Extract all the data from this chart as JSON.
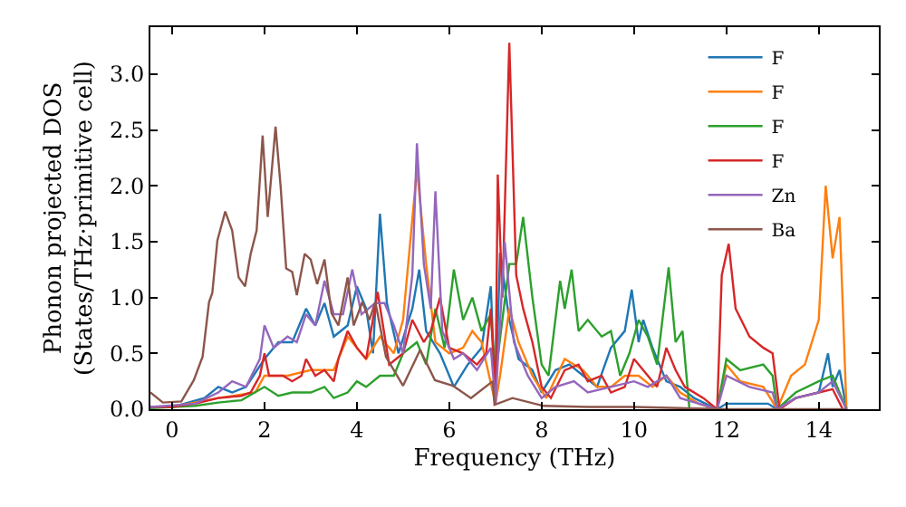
{
  "chart_data": {
    "type": "line",
    "xlabel": "Frequency (THz)",
    "ylabel": "Phonon projected DOS\n(States/THz·primitive cell)",
    "xlim": [
      -0.47,
      15.3
    ],
    "xticks": [
      0,
      2,
      4,
      6,
      8,
      10,
      12,
      14
    ],
    "ylim": [
      0,
      3.42
    ],
    "yticks": [
      {
        "value": 0,
        "label": "0.0"
      },
      {
        "value": 0.5,
        "label": "0.5"
      },
      {
        "value": 1,
        "label": "1.0"
      },
      {
        "value": 1.5,
        "label": "1.5"
      },
      {
        "value": 2,
        "label": "2.0"
      },
      {
        "value": 2.5,
        "label": "2.5"
      },
      {
        "value": 3,
        "label": "3.0"
      }
    ],
    "legend": "top right",
    "series": [
      {
        "name": "F",
        "color": "#1f77b4",
        "x": [
          -0.47,
          0,
          0.7,
          1.0,
          1.3,
          1.6,
          2.0,
          2.3,
          2.6,
          2.9,
          3.1,
          3.3,
          3.5,
          3.8,
          4.0,
          4.2,
          4.35,
          4.5,
          4.65,
          4.9,
          5.2,
          5.35,
          5.5,
          5.8,
          6.1,
          6.4,
          6.7,
          6.9,
          7.0,
          7.1,
          7.3,
          7.5,
          7.8,
          8.0,
          8.3,
          8.6,
          8.9,
          9.2,
          9.5,
          9.8,
          9.95,
          10.1,
          10.2,
          10.4,
          10.7,
          11.0,
          11.3,
          11.8,
          12.0,
          12.5,
          12.9,
          13.1,
          13.5,
          14.0,
          14.2,
          14.3,
          14.45,
          14.6
        ],
        "values": [
          0.02,
          0.02,
          0.1,
          0.2,
          0.15,
          0.2,
          0.45,
          0.6,
          0.6,
          0.9,
          0.75,
          0.95,
          0.65,
          0.75,
          1.1,
          0.9,
          0.5,
          1.75,
          0.95,
          0.5,
          0.9,
          1.25,
          0.7,
          0.5,
          0.2,
          0.4,
          0.55,
          1.1,
          0.05,
          1.4,
          0.8,
          0.45,
          0.35,
          0.15,
          0.35,
          0.4,
          0.3,
          0.2,
          0.55,
          0.7,
          1.07,
          0.6,
          0.8,
          0.55,
          0.25,
          0.2,
          0.1,
          0.0,
          0.05,
          0.05,
          0.05,
          0.0,
          0.1,
          0.15,
          0.5,
          0.2,
          0.35,
          0.0
        ]
      },
      {
        "name": "F",
        "color": "#ff7f0e",
        "x": [
          -0.47,
          0,
          1.0,
          1.8,
          2.0,
          2.5,
          3.0,
          3.5,
          3.8,
          4.2,
          4.5,
          4.8,
          5.0,
          5.3,
          5.5,
          5.7,
          6.0,
          6.3,
          6.5,
          6.7,
          7.0,
          7.1,
          7.3,
          7.5,
          7.8,
          8.1,
          8.5,
          8.9,
          9.2,
          9.5,
          9.8,
          10.1,
          10.4,
          10.7,
          11.0,
          11.4,
          11.8,
          12.0,
          12.3,
          12.8,
          13.1,
          13.4,
          13.7,
          14.0,
          14.15,
          14.3,
          14.45,
          14.6
        ],
        "values": [
          0.02,
          0.02,
          0.1,
          0.15,
          0.3,
          0.3,
          0.35,
          0.35,
          0.65,
          0.45,
          0.65,
          0.5,
          0.8,
          2.15,
          1.3,
          0.6,
          0.5,
          0.55,
          0.7,
          0.6,
          0.05,
          0.3,
          0.9,
          0.6,
          0.3,
          0.1,
          0.45,
          0.35,
          0.2,
          0.2,
          0.3,
          0.3,
          0.2,
          0.3,
          0.15,
          0.05,
          0.0,
          0.4,
          0.25,
          0.2,
          0.0,
          0.3,
          0.4,
          0.8,
          2.0,
          1.35,
          1.72,
          0.0
        ]
      },
      {
        "name": "F",
        "color": "#2ca02c",
        "x": [
          -0.47,
          0.5,
          1.0,
          1.5,
          2.0,
          2.3,
          2.6,
          3.0,
          3.3,
          3.5,
          3.8,
          4.0,
          4.2,
          4.5,
          4.8,
          5.0,
          5.3,
          5.5,
          5.7,
          5.9,
          6.1,
          6.3,
          6.5,
          6.7,
          6.9,
          7.0,
          7.3,
          7.45,
          7.6,
          7.8,
          8.0,
          8.15,
          8.4,
          8.5,
          8.65,
          8.8,
          9.0,
          9.3,
          9.5,
          9.7,
          9.9,
          10.1,
          10.3,
          10.5,
          10.75,
          10.9,
          11.05,
          11.2,
          11.8,
          12.0,
          12.3,
          12.8,
          13.0,
          13.1,
          13.5,
          14.0,
          14.3,
          14.6
        ],
        "values": [
          0.01,
          0.03,
          0.06,
          0.08,
          0.2,
          0.12,
          0.15,
          0.15,
          0.2,
          0.1,
          0.15,
          0.25,
          0.2,
          0.3,
          0.3,
          0.5,
          0.6,
          0.4,
          0.9,
          0.55,
          1.25,
          0.8,
          1.0,
          0.7,
          0.85,
          0.3,
          1.3,
          1.3,
          1.72,
          1.0,
          0.4,
          0.3,
          1.15,
          0.9,
          1.25,
          0.7,
          0.8,
          0.65,
          0.7,
          0.3,
          0.5,
          0.8,
          0.65,
          0.4,
          1.27,
          0.6,
          0.7,
          0.0,
          0.0,
          0.45,
          0.35,
          0.4,
          0.3,
          0.0,
          0.15,
          0.25,
          0.3,
          0.0
        ]
      },
      {
        "name": "F",
        "color": "#d62728",
        "x": [
          -0.47,
          0,
          0.5,
          1.0,
          1.5,
          1.7,
          1.9,
          2.0,
          2.1,
          2.4,
          2.6,
          2.8,
          2.9,
          3.1,
          3.3,
          3.5,
          3.6,
          3.8,
          4.0,
          4.2,
          4.45,
          4.7,
          5.0,
          5.2,
          5.45,
          5.6,
          5.8,
          6.0,
          6.3,
          6.6,
          6.8,
          6.9,
          7.0,
          7.05,
          7.15,
          7.3,
          7.45,
          7.6,
          7.8,
          8.0,
          8.2,
          8.5,
          8.8,
          9.0,
          9.3,
          9.5,
          9.8,
          10.0,
          10.3,
          10.5,
          10.7,
          10.9,
          11.1,
          11.5,
          11.8,
          11.9,
          12.05,
          12.2,
          12.5,
          12.8,
          13.0,
          13.15,
          13.5,
          14.0,
          14.3,
          14.52
        ],
        "values": [
          0.02,
          0.02,
          0.05,
          0.1,
          0.12,
          0.15,
          0.3,
          0.5,
          0.3,
          0.3,
          0.25,
          0.3,
          0.45,
          0.3,
          0.35,
          0.25,
          0.45,
          0.7,
          0.55,
          0.45,
          1.05,
          0.4,
          0.5,
          0.8,
          0.6,
          0.7,
          1.0,
          0.55,
          0.5,
          0.4,
          0.5,
          0.9,
          0.1,
          2.1,
          1.0,
          3.28,
          1.2,
          0.9,
          0.6,
          0.2,
          0.1,
          0.35,
          0.4,
          0.25,
          0.3,
          0.15,
          0.2,
          0.45,
          0.3,
          0.2,
          0.55,
          0.35,
          0.2,
          0.1,
          0.0,
          1.2,
          1.48,
          0.9,
          0.65,
          0.55,
          0.5,
          0.0,
          0.1,
          0.15,
          0.18,
          0.0
        ]
      },
      {
        "name": "Zn",
        "color": "#9467bd",
        "x": [
          -0.47,
          0.5,
          1.0,
          1.3,
          1.6,
          1.9,
          2.0,
          2.2,
          2.5,
          2.7,
          2.9,
          3.1,
          3.3,
          3.5,
          3.7,
          3.9,
          4.1,
          4.4,
          4.6,
          4.8,
          5.0,
          5.2,
          5.3,
          5.45,
          5.6,
          5.7,
          5.85,
          6.1,
          6.3,
          6.6,
          6.9,
          7.0,
          7.2,
          7.4,
          7.7,
          8.0,
          8.3,
          8.7,
          9.0,
          9.5,
          10.0,
          10.3,
          10.7,
          11.0,
          11.8,
          12.0,
          12.5,
          13.0,
          13.1,
          13.5,
          14.0,
          14.3,
          14.6
        ],
        "values": [
          0.02,
          0.05,
          0.15,
          0.25,
          0.2,
          0.45,
          0.75,
          0.55,
          0.65,
          0.6,
          0.85,
          0.75,
          1.15,
          0.85,
          0.85,
          1.25,
          0.85,
          0.95,
          0.95,
          0.75,
          0.5,
          1.2,
          2.38,
          1.3,
          0.9,
          1.95,
          0.7,
          0.45,
          0.5,
          0.35,
          0.55,
          0.05,
          1.5,
          0.6,
          0.3,
          0.1,
          0.2,
          0.25,
          0.15,
          0.2,
          0.25,
          0.2,
          0.3,
          0.1,
          0.0,
          0.3,
          0.2,
          0.15,
          0.0,
          0.1,
          0.15,
          0.25,
          0.0
        ]
      },
      {
        "name": "Ba",
        "color": "#8c564b",
        "x": [
          -0.47,
          -0.2,
          0.2,
          0.47,
          0.66,
          0.8,
          0.87,
          0.98,
          1.15,
          1.3,
          1.44,
          1.58,
          1.7,
          1.83,
          1.96,
          2.07,
          2.24,
          2.35,
          2.47,
          2.6,
          2.7,
          2.87,
          3.0,
          3.14,
          3.3,
          3.45,
          3.6,
          3.8,
          3.93,
          4.12,
          4.27,
          4.4,
          4.63,
          5.0,
          5.37,
          5.69,
          6.08,
          6.47,
          6.94,
          6.98,
          7.37,
          8.04,
          9.0,
          10.0,
          11.0,
          12.0,
          13.0,
          14.0,
          14.6
        ],
        "values": [
          0.15,
          0.06,
          0.07,
          0.26,
          0.47,
          0.96,
          1.04,
          1.51,
          1.77,
          1.6,
          1.18,
          1.1,
          1.39,
          1.6,
          2.45,
          1.72,
          2.53,
          1.99,
          1.26,
          1.23,
          1.02,
          1.39,
          1.34,
          1.12,
          1.34,
          0.86,
          0.75,
          1.18,
          0.75,
          0.96,
          0.8,
          0.96,
          0.47,
          0.21,
          0.53,
          0.26,
          0.21,
          0.1,
          0.25,
          0.04,
          0.1,
          0.03,
          0.02,
          0.02,
          0.01,
          0.0,
          0.0,
          0.0,
          0.0
        ]
      }
    ]
  }
}
